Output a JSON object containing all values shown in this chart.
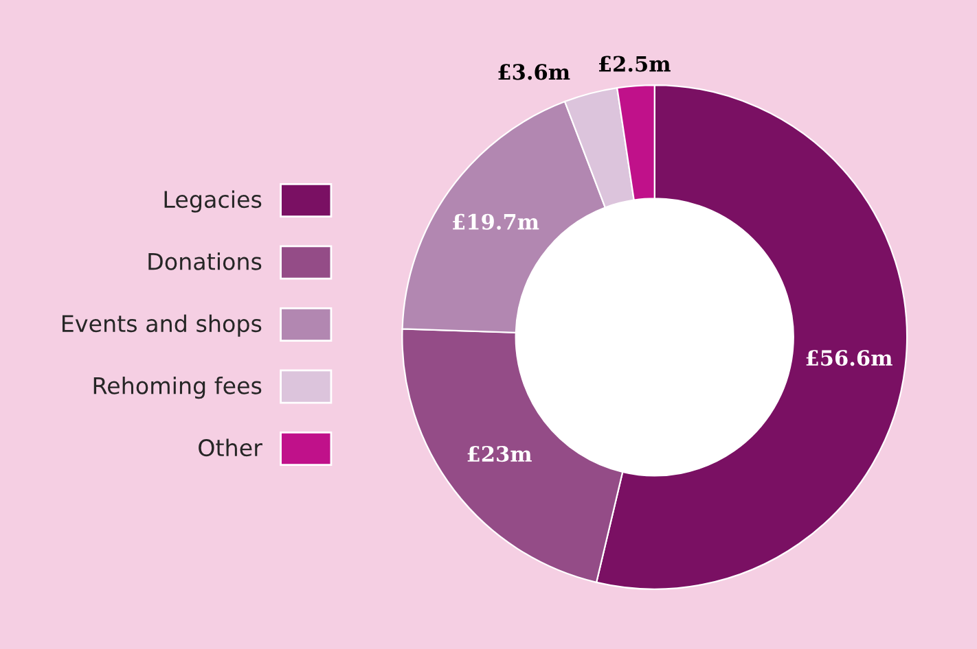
{
  "chart_data": {
    "type": "donut",
    "categories": [
      "Legacies",
      "Donations",
      "Events and shops",
      "Rehoming fees",
      "Other"
    ],
    "values": [
      56.6,
      23,
      19.7,
      3.6,
      2.5
    ],
    "value_labels": [
      "£56.6m",
      "£23m",
      "£19.7m",
      "£3.6m",
      "£2.5m"
    ],
    "colors": [
      "#7a1063",
      "#944c87",
      "#b287b1",
      "#dcc4dc",
      "#c0118a"
    ],
    "legend": "left"
  }
}
